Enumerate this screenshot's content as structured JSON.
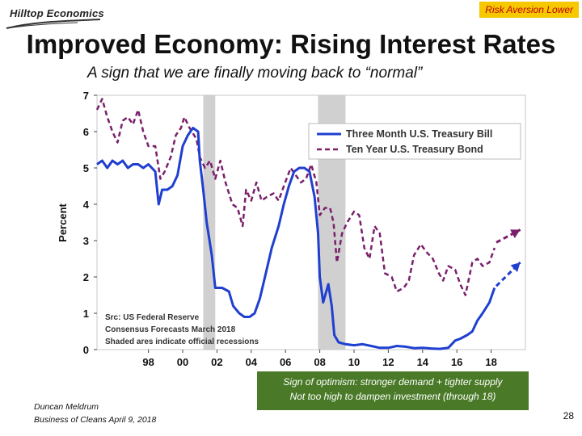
{
  "header": {
    "logo": "Hilltop Economics",
    "badge": "Risk Aversion Lower",
    "title": "Improved Economy: Rising Interest Rates",
    "subtitle": "A sign that we are finally moving back to “normal”"
  },
  "chart_data": {
    "type": "line",
    "ylabel": "Percent",
    "ylim": [
      0,
      7
    ],
    "xlim": [
      1995,
      2020
    ],
    "yticks": [
      "0",
      "1",
      "2",
      "3",
      "4",
      "5",
      "6",
      "7"
    ],
    "xticks": [
      {
        "label": "98",
        "x": 1998
      },
      {
        "label": "00",
        "x": 2000
      },
      {
        "label": "02",
        "x": 2002
      },
      {
        "label": "04",
        "x": 2004
      },
      {
        "label": "06",
        "x": 2006
      },
      {
        "label": "08",
        "x": 2008
      },
      {
        "label": "10",
        "x": 2010
      },
      {
        "label": "12",
        "x": 2012
      },
      {
        "label": "14",
        "x": 2014
      },
      {
        "label": "16",
        "x": 2016
      },
      {
        "label": "18",
        "x": 2018
      }
    ],
    "recessions": [
      [
        2001.2,
        2001.9
      ],
      [
        2007.9,
        2009.5
      ]
    ],
    "legend": "top-right",
    "series": [
      {
        "name": "Three Month U.S. Treasury Bill",
        "color": "#1f3fd0",
        "style": "solid",
        "points": [
          [
            1995.0,
            5.1
          ],
          [
            1995.3,
            5.2
          ],
          [
            1995.6,
            5.0
          ],
          [
            1995.9,
            5.2
          ],
          [
            1996.2,
            5.1
          ],
          [
            1996.5,
            5.2
          ],
          [
            1996.8,
            5.0
          ],
          [
            1997.1,
            5.1
          ],
          [
            1997.4,
            5.1
          ],
          [
            1997.7,
            5.0
          ],
          [
            1998.0,
            5.1
          ],
          [
            1998.4,
            4.9
          ],
          [
            1998.6,
            4.0
          ],
          [
            1998.8,
            4.4
          ],
          [
            1999.1,
            4.4
          ],
          [
            1999.4,
            4.5
          ],
          [
            1999.7,
            4.8
          ],
          [
            2000.0,
            5.6
          ],
          [
            2000.3,
            5.9
          ],
          [
            2000.6,
            6.1
          ],
          [
            2000.9,
            6.0
          ],
          [
            2001.0,
            5.2
          ],
          [
            2001.2,
            4.4
          ],
          [
            2001.4,
            3.5
          ],
          [
            2001.7,
            2.6
          ],
          [
            2001.9,
            1.7
          ],
          [
            2002.3,
            1.7
          ],
          [
            2002.7,
            1.6
          ],
          [
            2002.95,
            1.2
          ],
          [
            2003.3,
            1.0
          ],
          [
            2003.6,
            0.9
          ],
          [
            2003.9,
            0.9
          ],
          [
            2004.2,
            1.0
          ],
          [
            2004.5,
            1.4
          ],
          [
            2004.8,
            2.0
          ],
          [
            2005.2,
            2.8
          ],
          [
            2005.6,
            3.4
          ],
          [
            2005.9,
            4.0
          ],
          [
            2006.2,
            4.5
          ],
          [
            2006.5,
            4.9
          ],
          [
            2006.8,
            5.0
          ],
          [
            2007.1,
            5.0
          ],
          [
            2007.4,
            4.9
          ],
          [
            2007.7,
            4.2
          ],
          [
            2007.9,
            3.2
          ],
          [
            2008.0,
            2.0
          ],
          [
            2008.2,
            1.3
          ],
          [
            2008.5,
            1.8
          ],
          [
            2008.7,
            1.2
          ],
          [
            2008.85,
            0.4
          ],
          [
            2009.1,
            0.2
          ],
          [
            2009.5,
            0.15
          ],
          [
            2010.0,
            0.12
          ],
          [
            2010.5,
            0.15
          ],
          [
            2011.0,
            0.1
          ],
          [
            2011.5,
            0.05
          ],
          [
            2012.0,
            0.05
          ],
          [
            2012.5,
            0.1
          ],
          [
            2013.0,
            0.08
          ],
          [
            2013.5,
            0.04
          ],
          [
            2014.0,
            0.05
          ],
          [
            2014.5,
            0.03
          ],
          [
            2015.0,
            0.02
          ],
          [
            2015.5,
            0.05
          ],
          [
            2015.9,
            0.25
          ],
          [
            2016.2,
            0.3
          ],
          [
            2016.6,
            0.4
          ],
          [
            2016.9,
            0.5
          ],
          [
            2017.2,
            0.8
          ],
          [
            2017.5,
            1.0
          ],
          [
            2017.9,
            1.3
          ],
          [
            2018.2,
            1.7
          ]
        ]
      },
      {
        "name": "Ten Year U.S. Treasury Bond",
        "color": "#7a1f6b",
        "style": "dashed",
        "points": [
          [
            1995.0,
            6.6
          ],
          [
            1995.3,
            6.9
          ],
          [
            1995.6,
            6.4
          ],
          [
            1995.9,
            6.0
          ],
          [
            1996.2,
            5.7
          ],
          [
            1996.5,
            6.3
          ],
          [
            1996.8,
            6.4
          ],
          [
            1997.1,
            6.2
          ],
          [
            1997.4,
            6.6
          ],
          [
            1997.7,
            6.0
          ],
          [
            1998.0,
            5.6
          ],
          [
            1998.4,
            5.6
          ],
          [
            1998.7,
            4.7
          ],
          [
            1998.95,
            4.9
          ],
          [
            1999.3,
            5.3
          ],
          [
            1999.6,
            5.9
          ],
          [
            1999.9,
            6.1
          ],
          [
            2000.1,
            6.4
          ],
          [
            2000.4,
            6.1
          ],
          [
            2000.8,
            5.8
          ],
          [
            2001.0,
            5.3
          ],
          [
            2001.3,
            5.0
          ],
          [
            2001.6,
            5.2
          ],
          [
            2001.9,
            4.7
          ],
          [
            2002.2,
            5.2
          ],
          [
            2002.5,
            4.6
          ],
          [
            2002.9,
            4.0
          ],
          [
            2003.2,
            3.9
          ],
          [
            2003.5,
            3.4
          ],
          [
            2003.7,
            4.4
          ],
          [
            2004.0,
            4.1
          ],
          [
            2004.3,
            4.6
          ],
          [
            2004.6,
            4.1
          ],
          [
            2004.9,
            4.2
          ],
          [
            2005.3,
            4.3
          ],
          [
            2005.6,
            4.1
          ],
          [
            2005.9,
            4.5
          ],
          [
            2006.3,
            5.0
          ],
          [
            2006.6,
            4.8
          ],
          [
            2006.9,
            4.6
          ],
          [
            2007.2,
            4.7
          ],
          [
            2007.5,
            5.1
          ],
          [
            2007.8,
            4.6
          ],
          [
            2008.0,
            3.7
          ],
          [
            2008.3,
            3.9
          ],
          [
            2008.6,
            3.9
          ],
          [
            2008.8,
            3.5
          ],
          [
            2009.0,
            2.4
          ],
          [
            2009.3,
            3.2
          ],
          [
            2009.6,
            3.5
          ],
          [
            2010.0,
            3.8
          ],
          [
            2010.3,
            3.7
          ],
          [
            2010.6,
            2.8
          ],
          [
            2010.9,
            2.5
          ],
          [
            2011.2,
            3.4
          ],
          [
            2011.5,
            3.2
          ],
          [
            2011.8,
            2.1
          ],
          [
            2012.2,
            2.0
          ],
          [
            2012.5,
            1.6
          ],
          [
            2012.9,
            1.7
          ],
          [
            2013.2,
            1.9
          ],
          [
            2013.5,
            2.6
          ],
          [
            2013.9,
            2.9
          ],
          [
            2014.2,
            2.7
          ],
          [
            2014.6,
            2.5
          ],
          [
            2014.95,
            2.1
          ],
          [
            2015.2,
            1.9
          ],
          [
            2015.5,
            2.3
          ],
          [
            2015.9,
            2.2
          ],
          [
            2016.2,
            1.8
          ],
          [
            2016.5,
            1.5
          ],
          [
            2016.9,
            2.4
          ],
          [
            2017.2,
            2.5
          ],
          [
            2017.5,
            2.3
          ],
          [
            2017.9,
            2.4
          ],
          [
            2018.2,
            2.8
          ]
        ]
      }
    ],
    "forecasts": [
      {
        "series": "Ten Year U.S. Treasury Bond",
        "from": [
          2018.3,
          2.95
        ],
        "to": [
          2019.7,
          3.3
        ]
      },
      {
        "series": "Three Month U.S. Treasury Bill",
        "from": [
          2018.3,
          1.75
        ],
        "to": [
          2019.7,
          2.4
        ]
      }
    ],
    "annotations": [
      "Src: US Federal Reserve",
      "Consensus Forecasts March 2018",
      "Shaded ares indicate official recessions"
    ]
  },
  "footer": {
    "note_line1": "Sign of optimism: stronger demand + tighter supply",
    "note_line2": "Not too high to dampen investment (through 18)",
    "author_line1": "Duncan Meldrum",
    "author_line2": "Business of Cleans April 9, 2018",
    "page_number": "28"
  }
}
